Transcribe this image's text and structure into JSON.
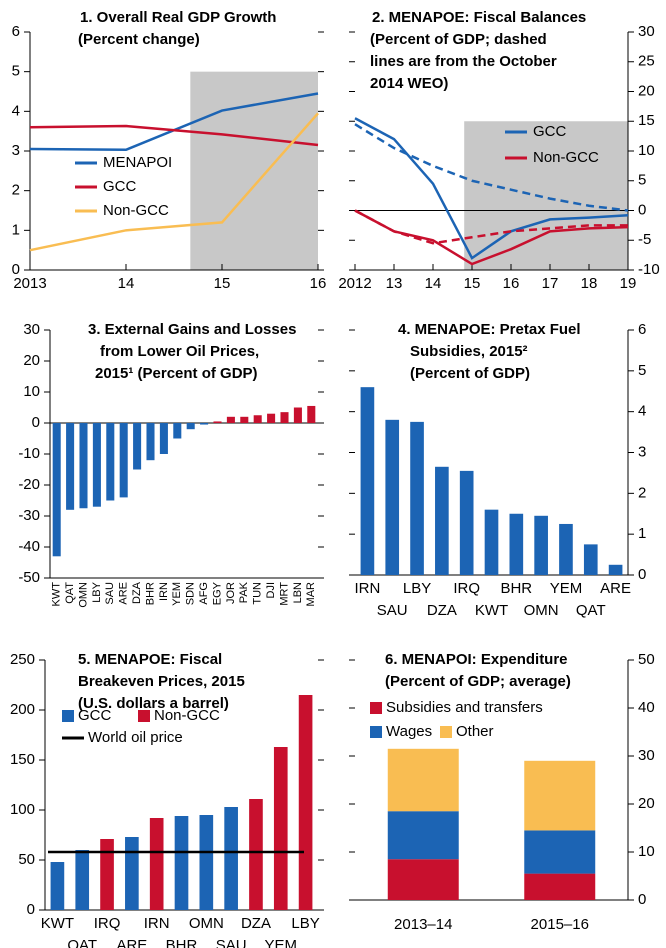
{
  "chart_data": [
    {
      "type": "line",
      "title": [
        "1. Overall Real GDP Growth",
        "(Percent change)"
      ],
      "x": [
        2013,
        2014,
        2015,
        2016
      ],
      "xlim": [
        2013,
        2016
      ],
      "xticks": [
        2013,
        {
          "value": 2014,
          "label": "14"
        },
        {
          "value": 2015,
          "label": "15"
        },
        {
          "value": 2016,
          "label": "16"
        }
      ],
      "ylim": [
        0,
        6
      ],
      "yticks": [
        0,
        1,
        2,
        3,
        4,
        5,
        6
      ],
      "axis_side": "left",
      "shaded_region": {
        "x": [
          2014.67,
          2016
        ],
        "y": [
          0,
          5
        ]
      },
      "series": [
        {
          "name": "MENAPOI",
          "color": "#1c64b4",
          "values": [
            3.05,
            3.03,
            4.02,
            4.45
          ]
        },
        {
          "name": "GCC",
          "color": "#c8102e",
          "values": [
            3.6,
            3.63,
            3.42,
            3.15
          ]
        },
        {
          "name": "Non-GCC",
          "color": "#f9bd52",
          "values": [
            0.5,
            1.0,
            1.2,
            3.95
          ]
        }
      ]
    },
    {
      "type": "line",
      "title": [
        "2. MENAPOE: Fiscal Balances",
        "(Percent of GDP; dashed",
        "lines are from the October",
        "2014 WEO)"
      ],
      "x": [
        2012,
        2013,
        2014,
        2015,
        2016,
        2017,
        2018,
        2019
      ],
      "xlim": [
        2012,
        2019
      ],
      "xticks": [
        2012,
        {
          "value": 2013,
          "label": "13"
        },
        {
          "value": 2014,
          "label": "14"
        },
        {
          "value": 2015,
          "label": "15"
        },
        {
          "value": 2016,
          "label": "16"
        },
        {
          "value": 2017,
          "label": "17"
        },
        {
          "value": 2018,
          "label": "18"
        },
        {
          "value": 2019,
          "label": "19"
        }
      ],
      "ylim": [
        -10,
        30
      ],
      "yticks": [
        -10,
        -5,
        0,
        5,
        10,
        15,
        20,
        25,
        30
      ],
      "axis_side": "right",
      "zero_line": true,
      "shaded_region": {
        "x": [
          2014.8,
          2019
        ],
        "y": [
          -10,
          15
        ]
      },
      "series": [
        {
          "name": "GCC",
          "color": "#1c64b4",
          "values": [
            15.5,
            12,
            4.5,
            -8,
            -3.5,
            -1.5,
            -1.2,
            -0.8
          ]
        },
        {
          "name": "Non-GCC",
          "color": "#c8102e",
          "values": [
            0,
            -3.5,
            -5,
            -9,
            -6.5,
            -3.5,
            -3,
            -2.8
          ]
        },
        {
          "color": "#1c64b4",
          "dashed": true,
          "values": [
            14.5,
            10.5,
            7.5,
            5,
            3.5,
            2,
            0.8,
            0
          ]
        },
        {
          "color": "#c8102e",
          "dashed": true,
          "values": [
            0,
            -3.5,
            -5.5,
            -4.5,
            -3.5,
            -3,
            -2.5,
            -2.5
          ]
        }
      ]
    },
    {
      "type": "bar",
      "title": [
        "3. External Gains and Losses",
        "from Lower Oil Prices,",
        "2015¹ (Percent of GDP)"
      ],
      "categories": [
        "KWT",
        "QAT",
        "OMN",
        "LBY",
        "SAU",
        "ARE",
        "DZA",
        "BHR",
        "IRN",
        "YEM",
        "SDN",
        "AFG",
        "EGY",
        "JOR",
        "PAK",
        "TUN",
        "DJI",
        "MRT",
        "LBN",
        "MAR"
      ],
      "values": [
        -43,
        -28,
        -27.5,
        -27,
        -25,
        -24,
        -15,
        -12,
        -10,
        -5,
        -2,
        -0.5,
        0.5,
        2,
        2,
        2.5,
        3,
        3.5,
        5,
        5.5
      ],
      "colors": [
        "#1c64b4",
        "#1c64b4",
        "#1c64b4",
        "#1c64b4",
        "#1c64b4",
        "#1c64b4",
        "#1c64b4",
        "#1c64b4",
        "#1c64b4",
        "#1c64b4",
        "#1c64b4",
        "#1c64b4",
        "#c8102e",
        "#c8102e",
        "#c8102e",
        "#c8102e",
        "#c8102e",
        "#c8102e",
        "#c8102e",
        "#c8102e"
      ],
      "ylim": [
        -50,
        30
      ],
      "yticks": [
        -50,
        -40,
        -30,
        -20,
        -10,
        0,
        10,
        20,
        30
      ],
      "axis_side": "left",
      "zero_line": true,
      "label_rotation": 90
    },
    {
      "type": "bar",
      "title": [
        "4. MENAPOE: Pretax Fuel",
        "Subsidies, 2015²",
        "(Percent of GDP)"
      ],
      "categories": [
        "IRN",
        "SAU",
        "LBY",
        "DZA",
        "IRQ",
        "KWT",
        "BHR",
        "OMN",
        "YEM",
        "QAT",
        "ARE"
      ],
      "values": [
        4.6,
        3.8,
        3.75,
        2.65,
        2.55,
        1.6,
        1.5,
        1.45,
        1.25,
        0.75,
        0.25
      ],
      "color": "#1c64b4",
      "ylim": [
        0,
        6
      ],
      "yticks": [
        0,
        1,
        2,
        3,
        4,
        5,
        6
      ],
      "axis_side": "right"
    },
    {
      "type": "bar",
      "title": [
        "5. MENAPOE: Fiscal",
        "Breakeven Prices, 2015",
        "(U.S. dollars a barrel)"
      ],
      "categories": [
        "KWT",
        "QAT",
        "IRQ",
        "ARE",
        "IRN",
        "BHR",
        "OMN",
        "SAU",
        "DZA",
        "YEM",
        "LBY"
      ],
      "values": [
        48,
        60,
        71,
        73,
        92,
        94,
        95,
        103,
        111,
        163,
        215
      ],
      "colors": [
        "#1c64b4",
        "#1c64b4",
        "#c8102e",
        "#1c64b4",
        "#c8102e",
        "#1c64b4",
        "#1c64b4",
        "#1c64b4",
        "#c8102e",
        "#c8102e",
        "#c8102e"
      ],
      "legend": [
        {
          "name": "GCC",
          "color": "#1c64b4"
        },
        {
          "name": "Non-GCC",
          "color": "#c8102e"
        }
      ],
      "reference_line": {
        "name": "World oil price",
        "value": 58,
        "color": "#000000"
      },
      "ylim": [
        0,
        250
      ],
      "yticks": [
        0,
        50,
        100,
        150,
        200,
        250
      ],
      "axis_side": "left"
    },
    {
      "type": "stacked_bar",
      "title": [
        "6. MENAPOI: Expenditure",
        "(Percent of GDP; average)"
      ],
      "categories": [
        "2013–14",
        "2015–16"
      ],
      "series": [
        {
          "name": "Subsidies and transfers",
          "color": "#c8102e",
          "values": [
            8.5,
            5.5
          ]
        },
        {
          "name": "Wages",
          "color": "#1c64b4",
          "values": [
            10,
            9
          ]
        },
        {
          "name": "Other",
          "color": "#f9bd52",
          "values": [
            13,
            14.5
          ]
        }
      ],
      "ylim": [
        0,
        50
      ],
      "yticks": [
        0,
        10,
        20,
        30,
        40,
        50
      ],
      "axis_side": "right"
    }
  ]
}
